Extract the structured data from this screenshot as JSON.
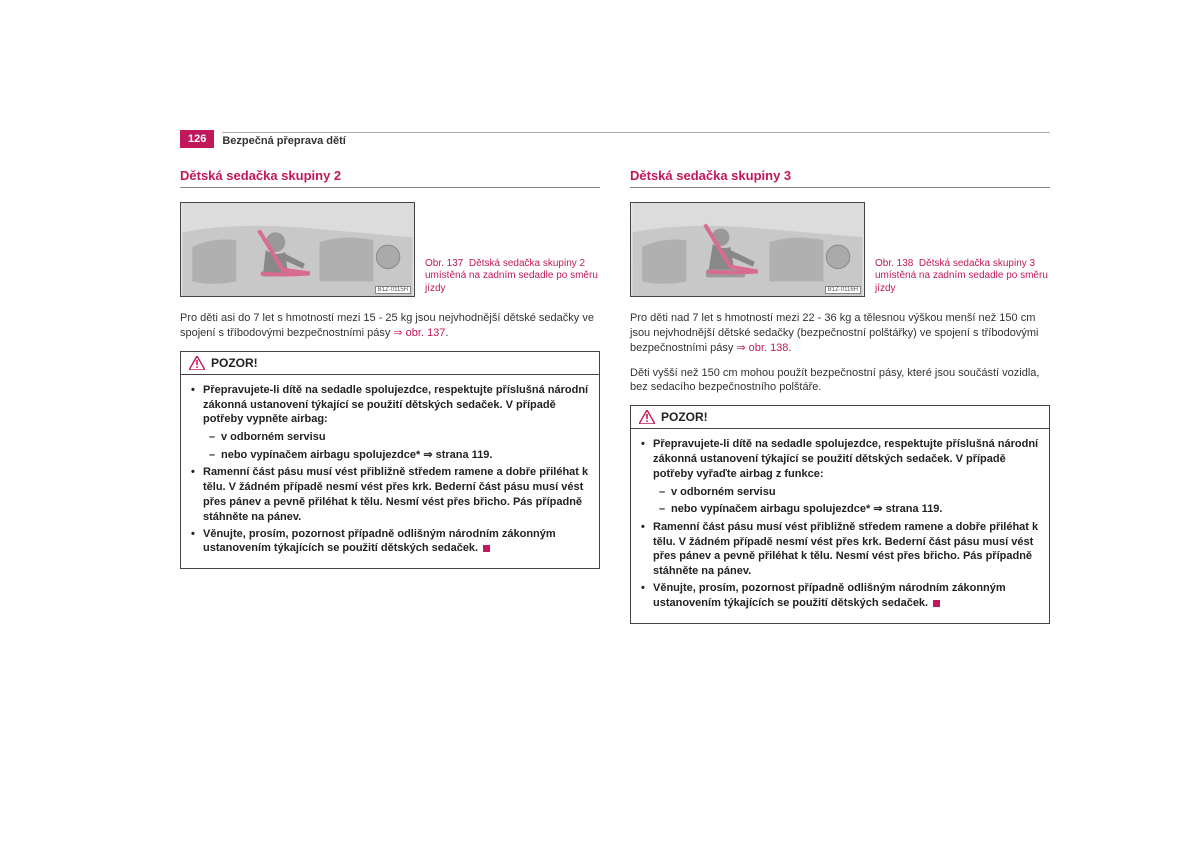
{
  "colors": {
    "accent": "#c2185b",
    "text": "#333333",
    "border": "#444444",
    "bg": "#ffffff"
  },
  "header": {
    "page_number": "126",
    "title": "Bezpečná přeprava dětí"
  },
  "left": {
    "section_title": "Dětská sedačka skupiny 2",
    "figure": {
      "code": "B1Z-0115H",
      "caption_prefix": "Obr. 137",
      "caption_text": "Dětská sedačka skupiny 2 umístěná na zadním sedadle po směru jízdy"
    },
    "intro_part1": "Pro děti asi do 7 let s hmotností mezi 15 - 25 kg jsou nejvhodnější dětské sedačky ve spojení s tříbodovými bezpečnostními pásy ",
    "intro_ref": "⇒ obr. 137",
    "intro_part2": ".",
    "warning": {
      "title": "POZOR!",
      "items": [
        {
          "text": "Přepravujete-li dítě na sedadle spolujezdce, respektujte příslušná národní zákonná ustanovení týkající se použití dětských sedaček. V případě potřeby vypněte airbag:"
        },
        {
          "sub": true,
          "text": "v odborném servisu"
        },
        {
          "sub": true,
          "text": "nebo vypínačem airbagu spolujezdce* ⇒ strana 119."
        },
        {
          "text": "Ramenní část pásu musí vést přibližně středem ramene a dobře přiléhat k tělu. V žádném případě nesmí vést přes krk. Bederní část pásu musí vést přes pánev a pevně přiléhat k tělu. Nesmí vést přes břicho. Pás případně stáhněte na pánev."
        },
        {
          "text": "Věnujte, prosím, pozornost případně odlišným národním zákonným ustanovením týkajících se použití dětských sedaček.",
          "end": true
        }
      ]
    }
  },
  "right": {
    "section_title": "Dětská sedačka skupiny 3",
    "figure": {
      "code": "B1Z-0116H",
      "caption_prefix": "Obr. 138",
      "caption_text": "Dětská sedačka skupiny 3 umístěná na zadním sedadle po směru jízdy"
    },
    "intro_part1": "Pro děti nad 7 let s hmotností mezi 22 - 36 kg a tělesnou výškou menší než 150 cm jsou nejvhodnější dětské sedačky (bezpečnostní polštářky) ve spojení s tříbodovými bezpečnostními pásy ",
    "intro_ref": "⇒ obr. 138",
    "intro_part2": ".",
    "para2": "Děti vyšší než 150 cm mohou použít bezpečnostní pásy, které jsou součástí vozidla, bez sedacího bezpečnostního polštáře.",
    "warning": {
      "title": "POZOR!",
      "items": [
        {
          "text": "Přepravujete-li dítě na sedadle spolujezdce, respektujte příslušná národní zákonná ustanovení týkající se použití dětských sedaček. V případě potřeby vyřaďte airbag z funkce:"
        },
        {
          "sub": true,
          "text": "v odborném servisu"
        },
        {
          "sub": true,
          "text": "nebo vypínačem airbagu spolujezdce* ⇒ strana 119."
        },
        {
          "text": "Ramenní část pásu musí vést přibližně středem ramene a dobře přiléhat k tělu. V žádném případě nesmí vést přes krk. Bederní část pásu musí vést přes pánev a pevně přiléhat k tělu. Nesmí vést přes břicho. Pás případně stáhněte na pánev."
        },
        {
          "text": "Věnujte, prosím, pozornost případně odlišným národním zákonným ustanovením týkajících se použití dětských sedaček.",
          "end": true
        }
      ]
    }
  }
}
